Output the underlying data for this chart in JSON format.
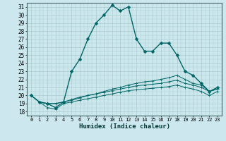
{
  "xlabel": "Humidex (Indice chaleur)",
  "bg_color": "#cce8ee",
  "grid_color": "#aacccc",
  "line_color": "#006666",
  "xlim": [
    -0.5,
    23.5
  ],
  "ylim": [
    17.5,
    31.5
  ],
  "yticks": [
    18,
    19,
    20,
    21,
    22,
    23,
    24,
    25,
    26,
    27,
    28,
    29,
    30,
    31
  ],
  "xticks": [
    0,
    1,
    2,
    3,
    4,
    5,
    6,
    7,
    8,
    9,
    10,
    11,
    12,
    13,
    14,
    15,
    16,
    17,
    18,
    19,
    20,
    21,
    22,
    23
  ],
  "series": [
    [
      20.0,
      19.2,
      19.0,
      18.5,
      19.2,
      23.0,
      24.5,
      27.0,
      29.0,
      30.0,
      31.2,
      30.5,
      31.0,
      27.0,
      25.5,
      25.5,
      26.5,
      26.5,
      25.0,
      23.0,
      22.5,
      21.5,
      20.5,
      21.0
    ],
    [
      20.0,
      19.2,
      19.0,
      19.0,
      19.2,
      19.5,
      19.8,
      20.0,
      20.2,
      20.5,
      20.8,
      21.0,
      21.3,
      21.5,
      21.7,
      21.8,
      22.0,
      22.2,
      22.5,
      22.0,
      21.5,
      21.3,
      20.5,
      20.8
    ],
    [
      20.0,
      19.2,
      19.0,
      19.0,
      19.2,
      19.4,
      19.7,
      20.0,
      20.2,
      20.4,
      20.6,
      20.8,
      21.0,
      21.2,
      21.3,
      21.4,
      21.5,
      21.7,
      21.9,
      21.5,
      21.3,
      21.0,
      20.5,
      20.8
    ],
    [
      20.0,
      19.2,
      18.5,
      18.3,
      19.0,
      19.2,
      19.4,
      19.6,
      19.8,
      20.0,
      20.2,
      20.4,
      20.6,
      20.7,
      20.8,
      20.9,
      21.0,
      21.1,
      21.3,
      21.0,
      20.8,
      20.5,
      20.0,
      20.5
    ]
  ]
}
